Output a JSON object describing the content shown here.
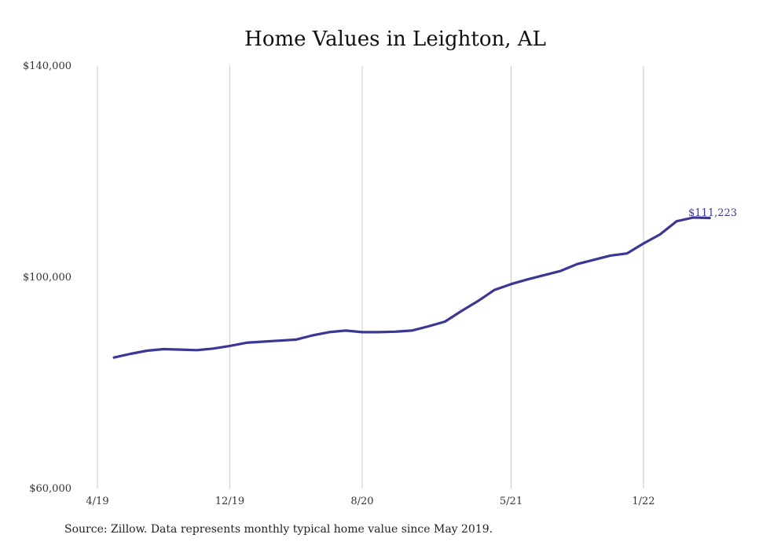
{
  "chart_data": {
    "type": "line",
    "title": "Home Values in Leighton, AL",
    "xlabel": "",
    "ylabel": "",
    "ylim": [
      60000,
      140000
    ],
    "y_ticks": [
      "$60,000",
      "$100,000",
      "$140,000"
    ],
    "x_ticks": [
      "4/19",
      "12/19",
      "8/20",
      "5/21",
      "1/22"
    ],
    "grid": "vertical",
    "line_color": "#3b3794",
    "series": [
      {
        "x": [
          "2019-05",
          "2019-06",
          "2019-07",
          "2019-08",
          "2019-09",
          "2019-10",
          "2019-11",
          "2019-12",
          "2020-01",
          "2020-02",
          "2020-03",
          "2020-04",
          "2020-05",
          "2020-06",
          "2020-07",
          "2020-08",
          "2020-09",
          "2020-10",
          "2020-11",
          "2020-12",
          "2021-01",
          "2021-02",
          "2021-03",
          "2021-04",
          "2021-05",
          "2021-06",
          "2021-07",
          "2021-08",
          "2021-09",
          "2021-10",
          "2021-11",
          "2021-12",
          "2022-01",
          "2022-02",
          "2022-03",
          "2022-04",
          "2022-05"
        ],
        "values": [
          84800,
          85500,
          86100,
          86400,
          86300,
          86200,
          86500,
          87000,
          87600,
          87800,
          88000,
          88200,
          89000,
          89600,
          89900,
          89600,
          89600,
          89700,
          89900,
          90700,
          91600,
          93600,
          95500,
          97600,
          98700,
          99600,
          100400,
          101200,
          102500,
          103300,
          104100,
          104500,
          106400,
          108100,
          110600,
          111300,
          111223
        ]
      }
    ],
    "end_label": "$111,223"
  },
  "source_note": "Source: Zillow. Data represents monthly typical home value since May 2019."
}
